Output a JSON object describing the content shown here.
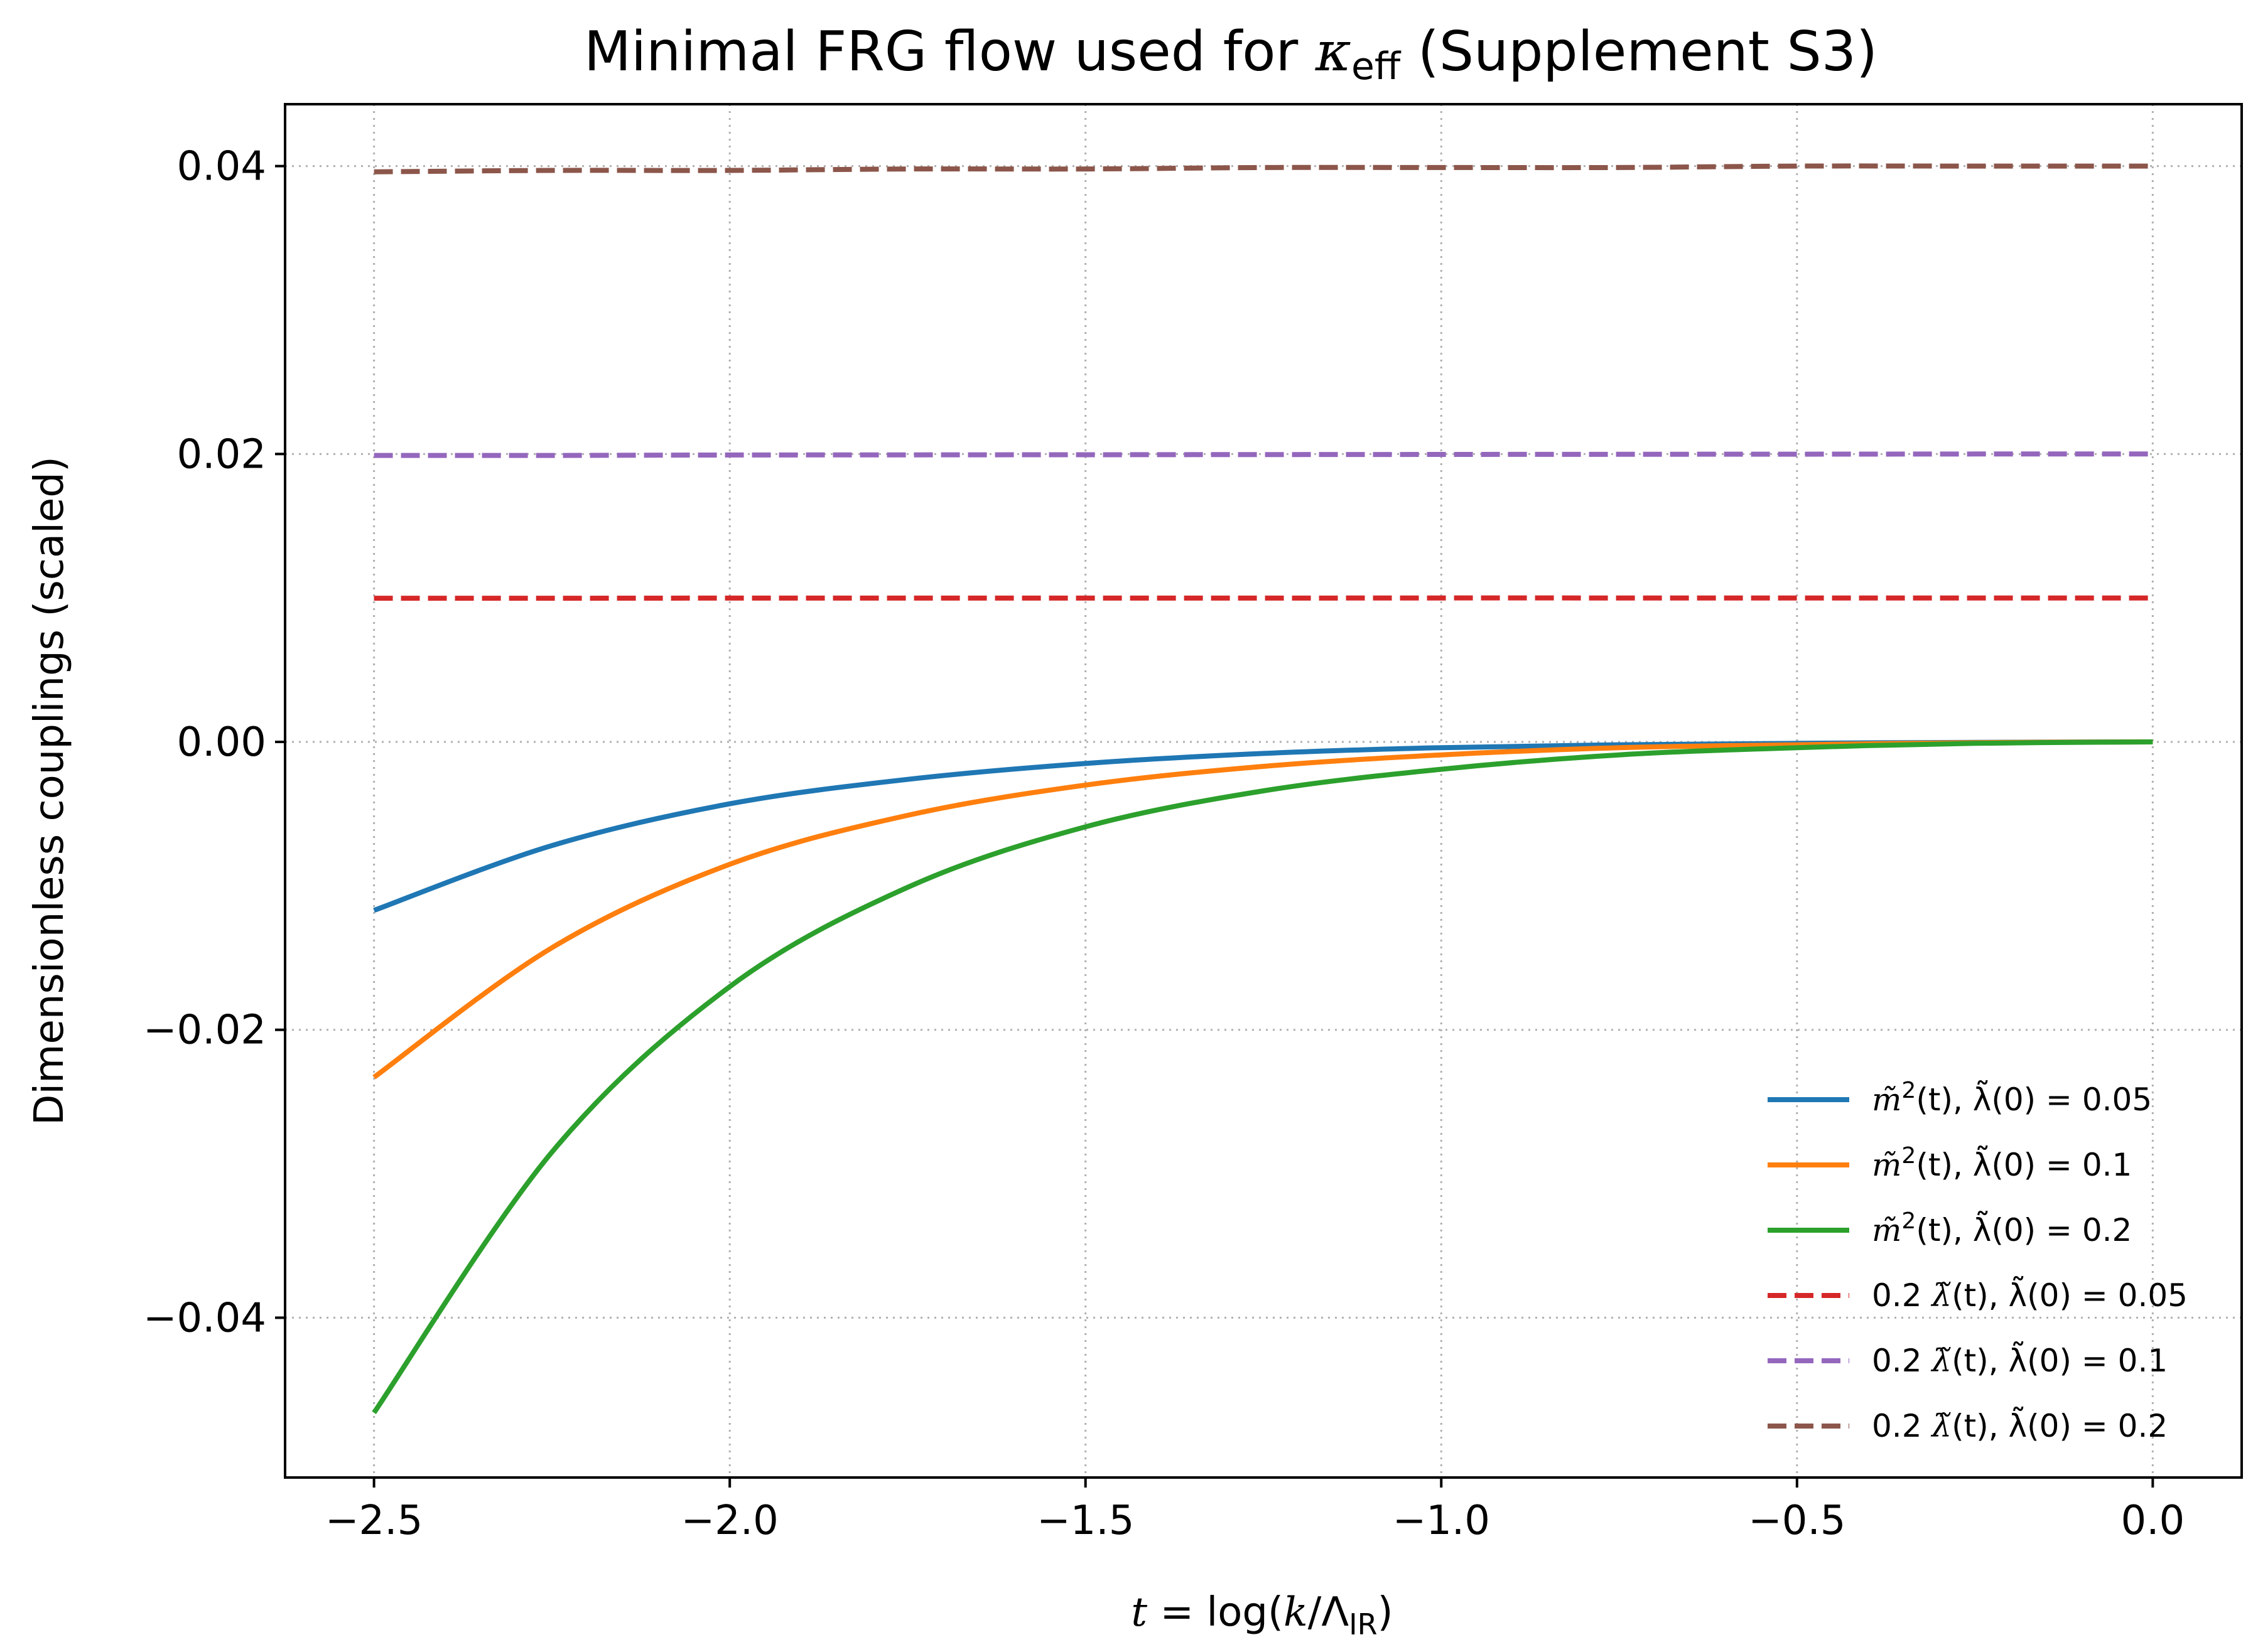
{
  "chart_data": {
    "type": "line",
    "title": "Minimal FRG flow used for κ_eff (Supplement S3)",
    "title_parts": {
      "main": "Minimal FRG flow used for ",
      "sym": "κ",
      "sub": "eff",
      "tail": " (Supplement S3)"
    },
    "xlabel": "t = log(k/Λ_IR)",
    "xlabel_parts": {
      "a": "t",
      "b": " = log(",
      "c": "k",
      "d": "/Λ",
      "e": "IR",
      "f": ")"
    },
    "ylabel": "Dimensionless couplings (scaled)",
    "xlim": [
      -2.625,
      0.125
    ],
    "ylim": [
      -0.0511,
      0.0443
    ],
    "xticks": [
      -2.5,
      -2.0,
      -1.5,
      -1.0,
      -0.5,
      0.0
    ],
    "xtick_labels": [
      "−2.5",
      "−2.0",
      "−1.5",
      "−1.0",
      "−0.5",
      "0.0"
    ],
    "yticks": [
      -0.04,
      -0.02,
      0.0,
      0.02,
      0.04
    ],
    "ytick_labels": [
      "−0.04",
      "−0.02",
      "0.00",
      "0.02",
      "0.04"
    ],
    "grid": true,
    "legend_position": "lower-right",
    "x": [
      -2.5,
      -2.25,
      -2.0,
      -1.75,
      -1.5,
      -1.25,
      -1.0,
      -0.75,
      -0.5,
      -0.25,
      0.0
    ],
    "series": [
      {
        "name": "m̃²(t), λ̃(0) = 0.05",
        "color": "#1f77b4",
        "dash": "solid",
        "values": [
          -0.0117,
          -0.0072,
          -0.0043,
          -0.0026,
          -0.0015,
          -0.0008,
          -0.0004,
          -0.0002,
          -0.0001,
          -3e-05,
          0.0
        ]
      },
      {
        "name": "m̃²(t), λ̃(0) = 0.1",
        "color": "#ff7f0e",
        "dash": "solid",
        "values": [
          -0.0233,
          -0.0143,
          -0.0085,
          -0.0051,
          -0.003,
          -0.0017,
          -0.0009,
          -0.0004,
          -0.0002,
          -5e-05,
          0.0
        ]
      },
      {
        "name": "m̃²(t), λ̃(0) = 0.2",
        "color": "#2ca02c",
        "dash": "solid",
        "values": [
          -0.0466,
          -0.0285,
          -0.017,
          -0.0101,
          -0.0059,
          -0.0034,
          -0.0019,
          -0.0009,
          -0.0004,
          -0.0001,
          0.0
        ]
      },
      {
        "name": "0.2 λ̃(t), λ̃(0) = 0.05",
        "color": "#d62728",
        "dash": "dashed",
        "values": [
          0.00998,
          0.00998,
          0.00999,
          0.00999,
          0.00999,
          0.00999,
          0.01,
          0.01,
          0.01,
          0.01,
          0.01
        ]
      },
      {
        "name": "0.2 λ̃(t), λ̃(0) = 0.1",
        "color": "#9467bd",
        "dash": "dashed",
        "values": [
          0.0199,
          0.0199,
          0.01993,
          0.01994,
          0.01995,
          0.01996,
          0.01997,
          0.01998,
          0.01999,
          0.02,
          0.02
        ]
      },
      {
        "name": "0.2 λ̃(t), λ̃(0) = 0.2",
        "color": "#8c564b",
        "dash": "dashed",
        "values": [
          0.0396,
          0.0397,
          0.0397,
          0.0398,
          0.0398,
          0.0399,
          0.0399,
          0.0399,
          0.04,
          0.04,
          0.04
        ]
      }
    ],
    "legend_parts": [
      {
        "pre": "",
        "a": "m̃",
        "sup": "2",
        "b": "(t), λ̃(0) = 0.05"
      },
      {
        "pre": "",
        "a": "m̃",
        "sup": "2",
        "b": "(t), λ̃(0) = 0.1"
      },
      {
        "pre": "",
        "a": "m̃",
        "sup": "2",
        "b": "(t), λ̃(0) = 0.2"
      },
      {
        "pre": "0.2 ",
        "a": "λ̃",
        "sup": "",
        "b": "(t), λ̃(0) = 0.05"
      },
      {
        "pre": "0.2 ",
        "a": "λ̃",
        "sup": "",
        "b": "(t), λ̃(0) = 0.1"
      },
      {
        "pre": "0.2 ",
        "a": "λ̃",
        "sup": "",
        "b": "(t), λ̃(0) = 0.2"
      }
    ]
  }
}
